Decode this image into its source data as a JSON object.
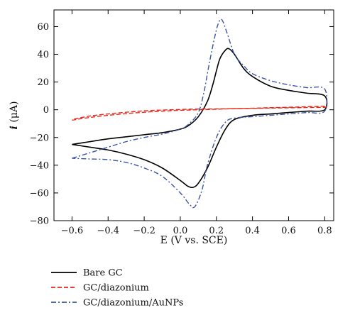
{
  "chart_data": {
    "type": "line",
    "title": "",
    "xlabel": "E (V vs. SCE)",
    "ylabel_italic": "i",
    "ylabel_unit": " (μA)",
    "xlim": [
      -0.7,
      0.85
    ],
    "ylim": [
      -80,
      72
    ],
    "xticks": [
      -0.6,
      -0.4,
      -0.2,
      0.0,
      0.2,
      0.4,
      0.6,
      0.8
    ],
    "xtick_labels": [
      "−0.6",
      "−0.4",
      "−0.2",
      "0.0",
      "0.2",
      "0.4",
      "0.6",
      "0.8"
    ],
    "yticks": [
      -80,
      -60,
      -40,
      -20,
      0,
      20,
      40,
      60
    ],
    "ytick_labels": [
      "−80",
      "−60",
      "−40",
      "−20",
      "0",
      "20",
      "40",
      "60"
    ],
    "grid": false,
    "legend_position": "bottom-left, below plot",
    "series": [
      {
        "name": "Bare GC",
        "color": "#000000",
        "dash": "solid",
        "x": [
          -0.6,
          -0.5,
          -0.4,
          -0.3,
          -0.2,
          -0.1,
          0.0,
          0.05,
          0.1,
          0.15,
          0.18,
          0.2,
          0.22,
          0.25,
          0.27,
          0.3,
          0.35,
          0.4,
          0.5,
          0.6,
          0.7,
          0.8,
          0.8,
          0.7,
          0.6,
          0.5,
          0.4,
          0.3,
          0.25,
          0.2,
          0.15,
          0.1,
          0.07,
          0.04,
          0.0,
          -0.1,
          -0.2,
          -0.3,
          -0.4,
          -0.5,
          -0.6
        ],
        "y": [
          -25,
          -23,
          -21,
          -19.5,
          -18,
          -16.5,
          -14,
          -11,
          -5,
          6,
          18,
          28,
          37,
          43,
          44,
          40,
          30,
          24,
          17,
          14,
          12,
          10,
          0,
          -1,
          -2,
          -3,
          -4,
          -7,
          -14,
          -27,
          -42,
          -53,
          -56,
          -55,
          -51,
          -42,
          -36,
          -32,
          -29,
          -27,
          -25
        ]
      },
      {
        "name": "GC/diazonium",
        "color": "#e8261b",
        "dash": "dashed",
        "x": [
          -0.6,
          -0.5,
          -0.4,
          -0.3,
          -0.2,
          -0.1,
          0.0,
          0.1,
          0.2,
          0.3,
          0.4,
          0.5,
          0.6,
          0.7,
          0.8,
          0.8,
          0.7,
          0.6,
          0.5,
          0.4,
          0.3,
          0.2,
          0.1,
          0.0,
          -0.1,
          -0.2,
          -0.3,
          -0.4,
          -0.5,
          -0.6
        ],
        "y": [
          -7.5,
          -5.5,
          -4,
          -2.8,
          -1.8,
          -1,
          -0.4,
          0,
          0.4,
          0.8,
          1.1,
          1.5,
          1.8,
          2.2,
          2.5,
          1.8,
          1.6,
          1.4,
          1.2,
          1,
          0.8,
          0.6,
          0.5,
          0.2,
          -0.2,
          -0.8,
          -1.8,
          -3,
          -4.5,
          -7
        ]
      },
      {
        "name": "GC/diazonium/AuNPs",
        "color": "#3a55a6",
        "dash": "dashdot",
        "x": [
          -0.6,
          -0.5,
          -0.4,
          -0.3,
          -0.2,
          -0.1,
          0.0,
          0.05,
          0.1,
          0.13,
          0.16,
          0.19,
          0.21,
          0.23,
          0.26,
          0.3,
          0.35,
          0.4,
          0.5,
          0.6,
          0.7,
          0.8,
          0.8,
          0.7,
          0.6,
          0.5,
          0.4,
          0.3,
          0.25,
          0.2,
          0.15,
          0.12,
          0.08,
          0.05,
          0.0,
          -0.1,
          -0.2,
          -0.3,
          -0.4,
          -0.5,
          -0.6
        ],
        "y": [
          -35,
          -31,
          -27,
          -23,
          -20,
          -17.5,
          -14,
          -10,
          -2,
          12,
          33,
          52,
          62,
          65,
          55,
          40,
          32,
          26,
          21,
          18,
          16,
          15,
          -1,
          -2,
          -3,
          -4,
          -5,
          -6,
          -9,
          -20,
          -40,
          -58,
          -70,
          -68,
          -60,
          -48,
          -42,
          -38,
          -36,
          -35.5,
          -35
        ]
      }
    ]
  }
}
